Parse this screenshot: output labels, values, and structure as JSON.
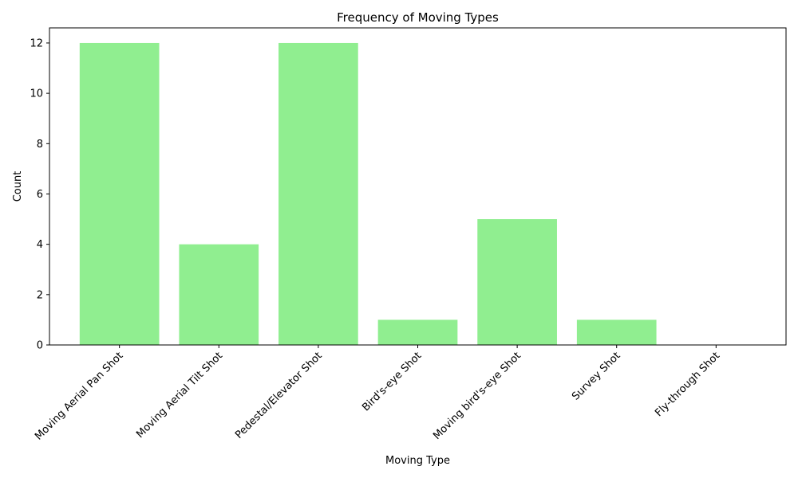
{
  "chart_data": {
    "type": "bar",
    "title": "Frequency of Moving Types",
    "xlabel": "Moving Type",
    "ylabel": "Count",
    "categories": [
      "Moving Aerial Pan Shot",
      "Moving Aerial Tilt Shot",
      "Pedestal/Elevator Shot",
      "Bird's-eye Shot",
      "Moving bird's-eye Shot",
      "Survey Shot",
      "Fly-through Shot"
    ],
    "values": [
      12,
      4,
      12,
      1,
      5,
      1,
      0
    ],
    "ylim": [
      0,
      12.6
    ],
    "yticks": [
      "0",
      "2",
      "4",
      "6",
      "8",
      "10",
      "12"
    ],
    "bar_color": "#90ee90",
    "grid": false,
    "legend": "none"
  }
}
